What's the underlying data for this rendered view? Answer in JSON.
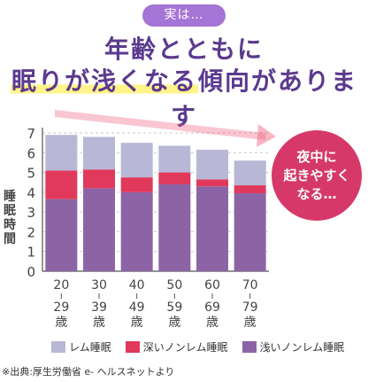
{
  "badge": "実は…",
  "headline": {
    "line1": "年齢とともに",
    "highlight": "眠りが浅くなる",
    "rest": "傾向があります"
  },
  "bubble": {
    "line1": "夜中に",
    "line2": "起きやすく",
    "line3": "なる…"
  },
  "source": "※出典:厚生労働省 e- ヘルスネットより",
  "colors": {
    "rem": "#b8b7d6",
    "deep": "#e0395b",
    "light": "#8c64a6",
    "arrow": "#ee5b7e",
    "bubble": "#d6386a",
    "badge": "#a474d6"
  },
  "chart_data": {
    "type": "bar",
    "stacked": true,
    "categories": [
      "20-29歳",
      "30-39歳",
      "40-49歳",
      "50-59歳",
      "60-69歳",
      "70-79歳"
    ],
    "category_labels": [
      [
        "20",
        "29",
        "歳"
      ],
      [
        "30",
        "39",
        "歳"
      ],
      [
        "40",
        "49",
        "歳"
      ],
      [
        "50",
        "59",
        "歳"
      ],
      [
        "60",
        "69",
        "歳"
      ],
      [
        "70",
        "79",
        "歳"
      ]
    ],
    "series": [
      {
        "name": "浅いノンレム睡眠",
        "values": [
          3.65,
          4.2,
          4.0,
          4.4,
          4.3,
          3.95
        ]
      },
      {
        "name": "深いノンレム睡眠",
        "values": [
          1.45,
          0.95,
          0.75,
          0.6,
          0.35,
          0.4
        ]
      },
      {
        "name": "レム睡眠",
        "values": [
          1.8,
          1.65,
          1.75,
          1.35,
          1.5,
          1.25
        ]
      }
    ],
    "legend_order": [
      2,
      1,
      0
    ],
    "ylabel": "睡眠時間",
    "ylim": [
      0,
      7
    ],
    "yticks": [
      0,
      1,
      2,
      3,
      4,
      5,
      6,
      7
    ],
    "legend": "bottom",
    "grid": true
  }
}
